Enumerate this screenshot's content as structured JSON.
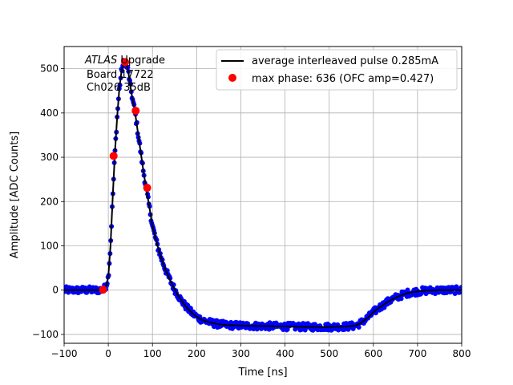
{
  "chart_data": {
    "type": "line",
    "title": "",
    "xlabel": "Time [ns]",
    "ylabel": "Amplitude [ADC Counts]",
    "xlim": [
      -100,
      800
    ],
    "ylim": [
      -120,
      550
    ],
    "xticks": [
      -100,
      0,
      100,
      200,
      300,
      400,
      500,
      600,
      700,
      800
    ],
    "yticks": [
      -100,
      0,
      100,
      200,
      300,
      400,
      500
    ],
    "grid": true,
    "annotation": {
      "italic": "ATLAS",
      "rest": " Upgrade",
      "line2": "Board 17722",
      "line3": "Ch026 35dB"
    },
    "legend": {
      "placement": "top-right",
      "entries": [
        {
          "label": "average interleaved pulse 0.285mA",
          "style": "line",
          "color": "#000000"
        },
        {
          "label": "max phase: 636 (OFC amp=0.427)",
          "style": "marker",
          "color": "#ff0000"
        }
      ]
    },
    "series": [
      {
        "style": "line",
        "color": "#000000",
        "x": [
          -100,
          -25,
          -15,
          -10,
          -5,
          0,
          5,
          10,
          15,
          20,
          25,
          30,
          35,
          40,
          45,
          50,
          55,
          60,
          65,
          70,
          75,
          80,
          85,
          90,
          95,
          100,
          110,
          120,
          130,
          140,
          150,
          160,
          170,
          180,
          190,
          200,
          210,
          220,
          230,
          250,
          270,
          300,
          350,
          400,
          450,
          500,
          540,
          560,
          570,
          580,
          590,
          600,
          610,
          620,
          630,
          640,
          650,
          660,
          670,
          680,
          700,
          720,
          750,
          800
        ],
        "y": [
          0,
          0,
          1,
          3,
          10,
          30,
          100,
          210,
          310,
          390,
          455,
          495,
          515,
          513,
          495,
          460,
          430,
          405,
          370,
          335,
          300,
          265,
          235,
          205,
          175,
          145,
          105,
          72,
          45,
          22,
          2,
          -15,
          -30,
          -42,
          -52,
          -60,
          -66,
          -70,
          -73,
          -77,
          -79,
          -80,
          -81,
          -82,
          -83,
          -83,
          -82,
          -80,
          -75,
          -68,
          -60,
          -50,
          -42,
          -35,
          -28,
          -22,
          -17,
          -13,
          -9,
          -6,
          -3,
          -1,
          0,
          0
        ]
      },
      {
        "style": "scatter",
        "color": "#0000ff",
        "noise": 8
      },
      {
        "style": "marker",
        "color": "#ff0000",
        "x": [
          -12,
          12,
          38,
          62,
          88
        ],
        "y": [
          1,
          303,
          515,
          405,
          231
        ]
      }
    ]
  }
}
